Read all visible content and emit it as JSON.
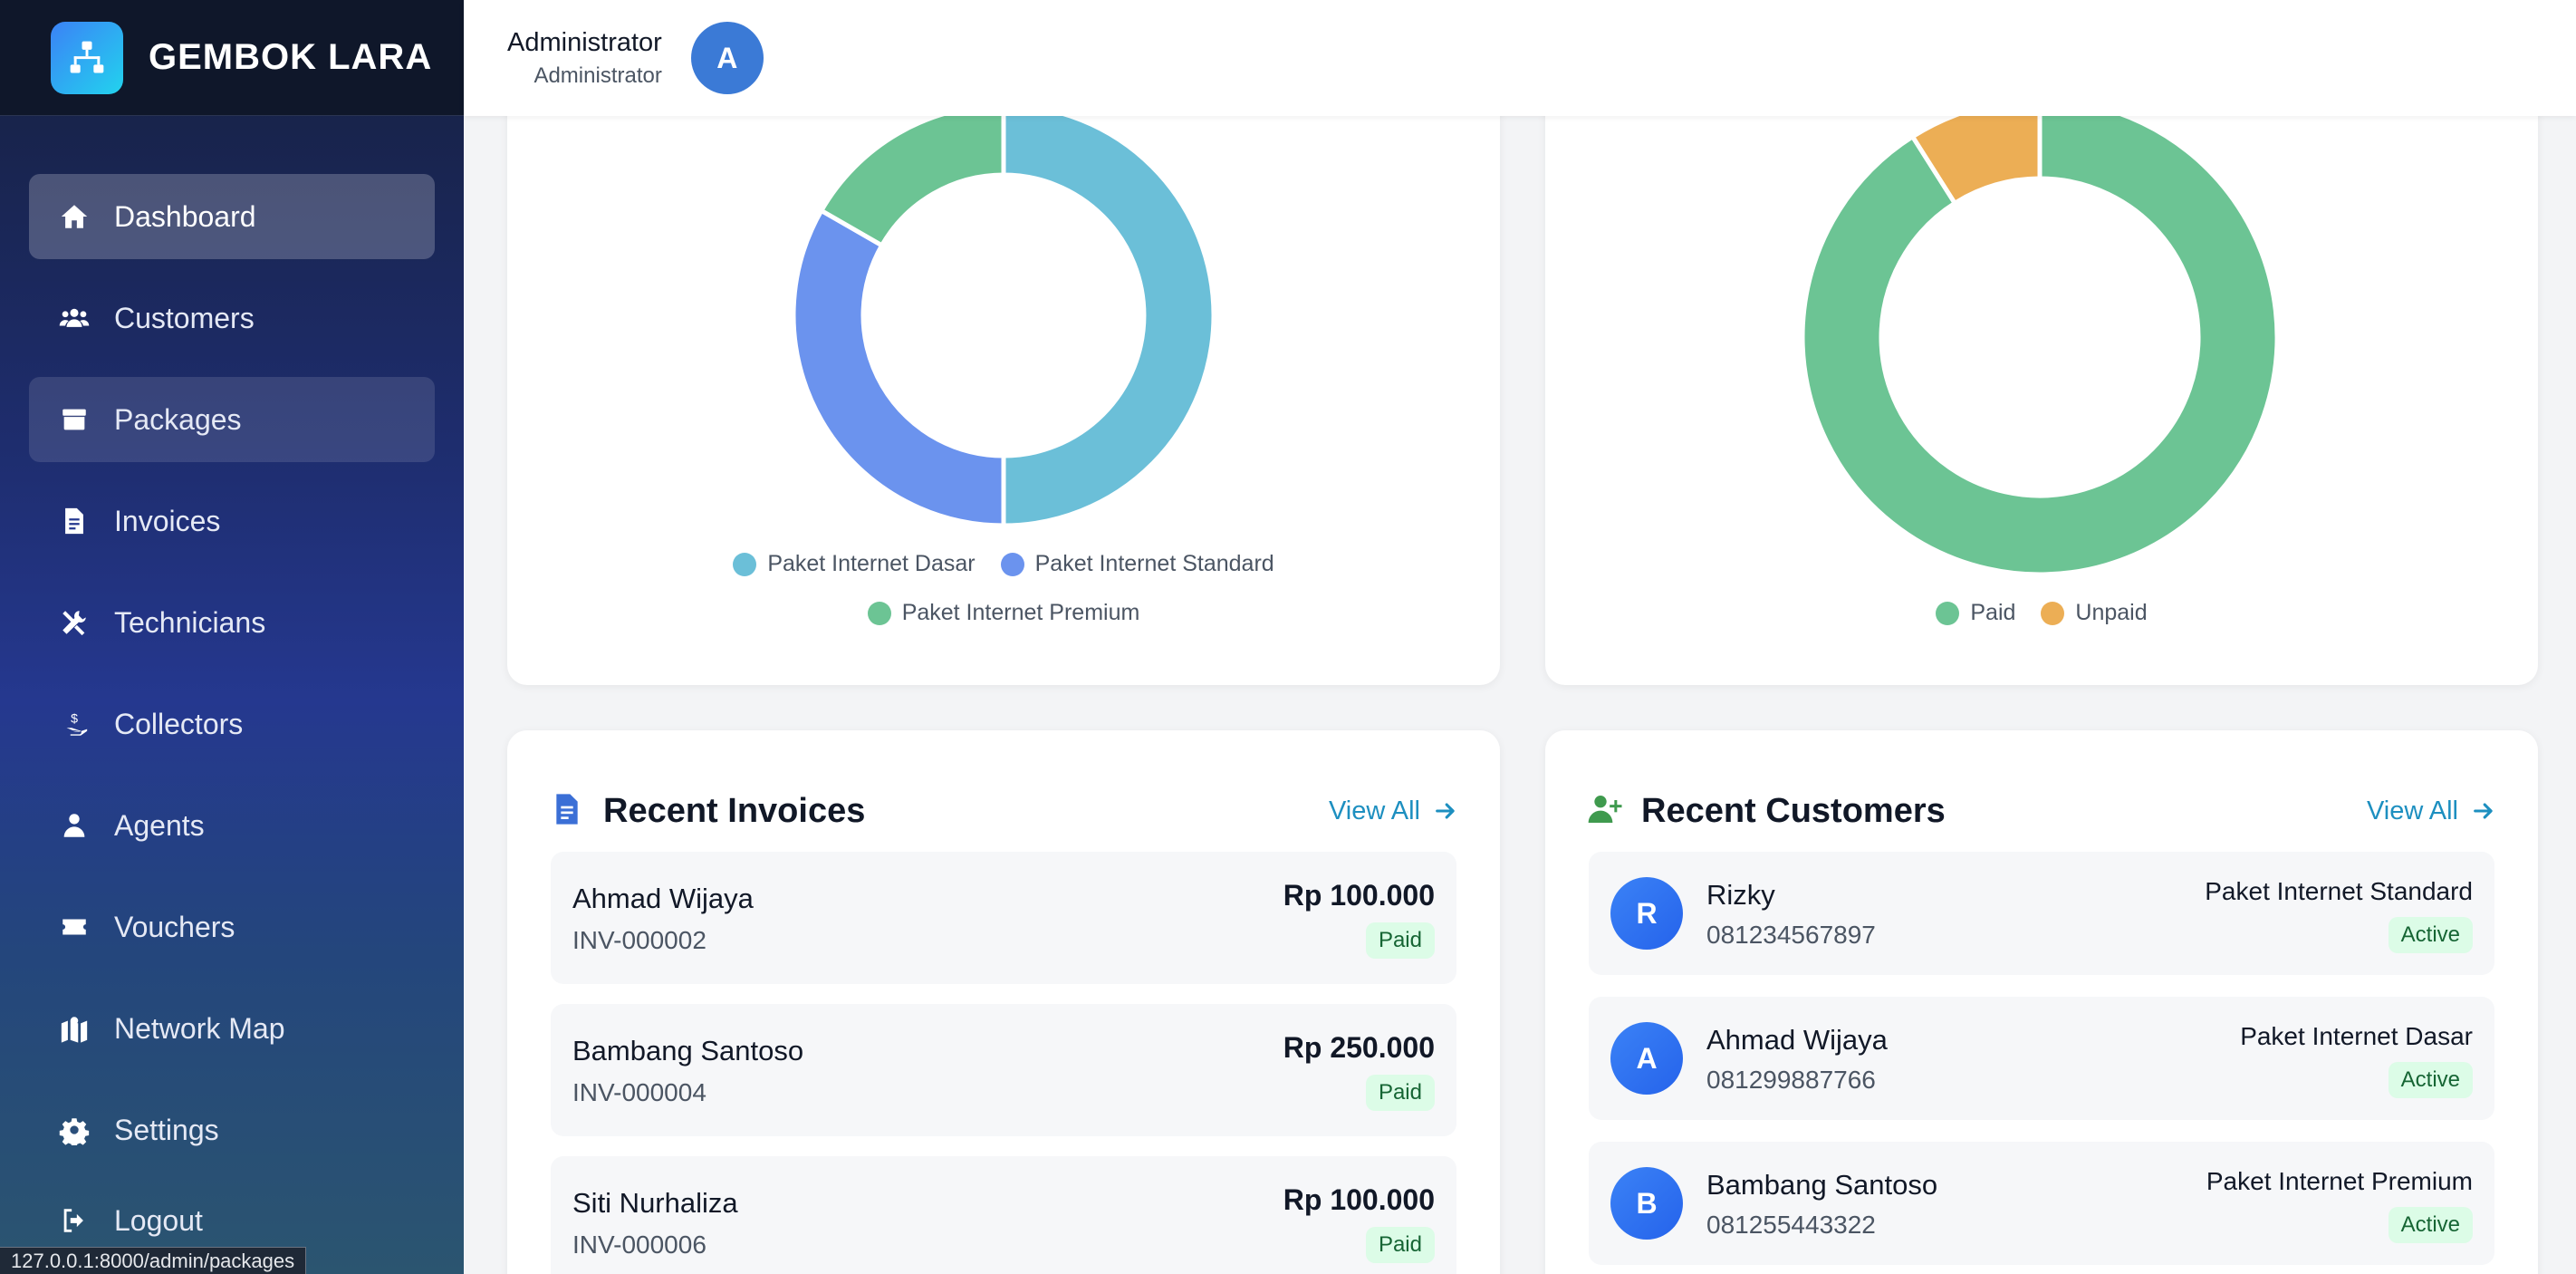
{
  "brand": {
    "name": "GEMBOK LARA"
  },
  "sidebar": {
    "items": [
      {
        "label": "Dashboard",
        "icon": "home-icon"
      },
      {
        "label": "Customers",
        "icon": "users-icon"
      },
      {
        "label": "Packages",
        "icon": "box-icon"
      },
      {
        "label": "Invoices",
        "icon": "file-invoice-icon"
      },
      {
        "label": "Technicians",
        "icon": "tools-icon"
      },
      {
        "label": "Collectors",
        "icon": "hand-dollar-icon"
      },
      {
        "label": "Agents",
        "icon": "user-tie-icon"
      },
      {
        "label": "Vouchers",
        "icon": "ticket-icon"
      },
      {
        "label": "Network Map",
        "icon": "map-marked-icon"
      },
      {
        "label": "Settings",
        "icon": "gear-icon"
      },
      {
        "label": "Logout",
        "icon": "logout-icon"
      }
    ]
  },
  "status_url": "127.0.0.1:8000/admin/packages",
  "header": {
    "user_name": "Administrator",
    "user_role": "Administrator",
    "avatar_initial": "A"
  },
  "colors": {
    "dasar": "#6bbfd8",
    "standard": "#6b93ee",
    "premium": "#6cc494",
    "paid": "#6cc494",
    "unpaid": "#ecae55",
    "link": "#1d8fc0"
  },
  "chart_data": [
    {
      "type": "pie",
      "categories": [
        "Paket Internet Dasar",
        "Paket Internet Standard",
        "Paket Internet Premium"
      ],
      "values": [
        50,
        33.3,
        16.7
      ],
      "legend_position": "bottom"
    },
    {
      "type": "pie",
      "categories": [
        "Paid",
        "Unpaid"
      ],
      "values": [
        91,
        9
      ],
      "legend_position": "bottom"
    }
  ],
  "recent_invoices": {
    "title": "Recent Invoices",
    "view_all": "View All",
    "items": [
      {
        "name": "Ahmad Wijaya",
        "number": "INV-000002",
        "amount": "Rp 100.000",
        "status": "Paid"
      },
      {
        "name": "Bambang Santoso",
        "number": "INV-000004",
        "amount": "Rp 250.000",
        "status": "Paid"
      },
      {
        "name": "Siti Nurhaliza",
        "number": "INV-000006",
        "amount": "Rp 100.000",
        "status": "Paid"
      }
    ]
  },
  "recent_customers": {
    "title": "Recent Customers",
    "view_all": "View All",
    "items": [
      {
        "initial": "R",
        "name": "Rizky",
        "phone": "081234567897",
        "package": "Paket Internet Standard",
        "status": "Active"
      },
      {
        "initial": "A",
        "name": "Ahmad Wijaya",
        "phone": "081299887766",
        "package": "Paket Internet Dasar",
        "status": "Active"
      },
      {
        "initial": "B",
        "name": "Bambang Santoso",
        "phone": "081255443322",
        "package": "Paket Internet Premium",
        "status": "Active"
      }
    ]
  }
}
